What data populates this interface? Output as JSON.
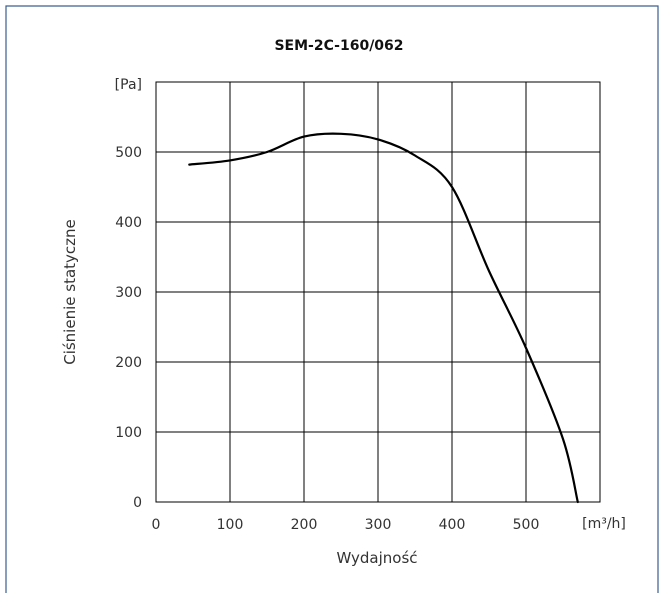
{
  "chart_data": {
    "type": "line",
    "title": "SEM-2C-160/062",
    "xlabel": "Wydajność",
    "ylabel": "Ciśnienie statyczne",
    "x_unit": "[m³/h]",
    "y_unit": "[Pa]",
    "xlim": [
      0,
      600
    ],
    "ylim": [
      0,
      600
    ],
    "x_ticks": [
      0,
      100,
      200,
      300,
      400,
      500
    ],
    "y_ticks": [
      0,
      100,
      200,
      300,
      400,
      500
    ],
    "grid": true,
    "legend": "none",
    "series": [
      {
        "x": [
          45,
          100,
          150,
          200,
          250,
          300,
          350,
          400,
          450,
          500,
          550,
          570
        ],
        "y": [
          482,
          488,
          500,
          522,
          526,
          518,
          495,
          450,
          330,
          220,
          90,
          0
        ]
      }
    ]
  }
}
